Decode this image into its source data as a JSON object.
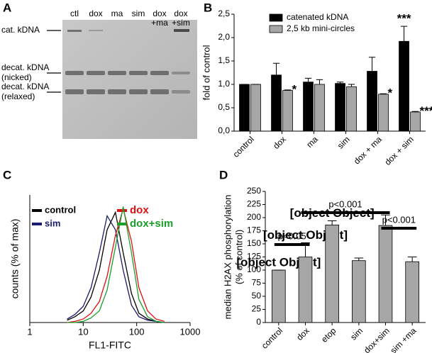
{
  "panels": [
    "A",
    "B",
    "C",
    "D"
  ],
  "gel": {
    "lanes": [
      "ctl",
      "dox",
      "ma",
      "sim",
      [
        "dox",
        "+ma"
      ],
      [
        "dox",
        "+sim"
      ]
    ],
    "bands": [
      [
        "cat. kDNA"
      ],
      [
        "decat. kDNA",
        "(nicked)"
      ],
      [
        "decat. kDNA",
        "(relaxed)"
      ]
    ]
  },
  "chart_data": [
    {
      "type": "bar",
      "ylabel": "fold of control",
      "categories": [
        "control",
        "dox",
        "ma",
        "sim",
        "dox + ma",
        "dox + sim"
      ],
      "series": [
        {
          "name": "catenated kDNA",
          "color": "#000000",
          "values": [
            1.0,
            1.2,
            1.05,
            1.02,
            1.28,
            1.92
          ],
          "errors": [
            0,
            0.25,
            0.08,
            0.03,
            0.3,
            0.32
          ],
          "annotations": [
            null,
            null,
            null,
            null,
            null,
            "***"
          ]
        },
        {
          "name": "2,5 kb mini-circles",
          "color": "#a6a6a6",
          "values": [
            1.0,
            0.87,
            1.0,
            0.95,
            0.79,
            0.41
          ],
          "errors": [
            0,
            0.01,
            0.1,
            0.05,
            0.01,
            0.01
          ],
          "annotations": [
            null,
            "*",
            null,
            null,
            "*",
            "***"
          ]
        }
      ],
      "ylim": [
        0,
        2.5
      ],
      "yticks": [
        {
          "value": 0,
          "label": "0,0"
        },
        {
          "value": 0.5,
          "label": "0,5"
        },
        {
          "value": 1,
          "label": "1,0"
        },
        {
          "value": 1.5,
          "label": "1,5"
        },
        {
          "value": 2,
          "label": "2,0"
        },
        {
          "value": 2.5,
          "label": "2,5"
        }
      ],
      "legend": "upper left"
    },
    {
      "type": "line",
      "xlabel": "FL1-FITC",
      "ylabel": "counts (% of max)",
      "xscale": "log",
      "x": [
        5,
        7,
        10,
        14,
        20,
        28,
        40,
        56,
        80,
        110,
        160,
        230,
        330
      ],
      "series": [
        {
          "name": "control",
          "color": "#000000",
          "values": [
            2,
            5,
            10,
            22,
            45,
            80,
            95,
            60,
            25,
            8,
            3,
            1,
            0
          ]
        },
        {
          "name": "sim",
          "color": "#1a1a6e",
          "values": [
            3,
            7,
            14,
            30,
            60,
            92,
            80,
            45,
            15,
            5,
            2,
            1,
            0
          ]
        },
        {
          "name": "dox",
          "color": "#e01010",
          "values": [
            0,
            1,
            3,
            8,
            18,
            40,
            75,
            98,
            70,
            30,
            10,
            3,
            1
          ]
        },
        {
          "name": "dox+sim",
          "color": "#18a02a",
          "values": [
            0,
            0,
            1,
            4,
            10,
            28,
            65,
            100,
            60,
            20,
            5,
            1,
            0
          ]
        }
      ],
      "xlim": [
        1,
        1000
      ],
      "xticks": [
        1,
        10,
        100,
        1000
      ],
      "ylim": [
        0,
        110
      ]
    },
    {
      "type": "bar",
      "ylabel": [
        "median H2AX phosphorylation",
        "(% of control)"
      ],
      "categories": [
        "control",
        "dox",
        "etop",
        "sim",
        "dox+sim",
        "sim +ma"
      ],
      "values": [
        100,
        125,
        186,
        118,
        185,
        116
      ],
      "errors": [
        0,
        27,
        8,
        5,
        20,
        9
      ],
      "color": "#a6a6a6",
      "ylim": [
        0,
        250
      ],
      "yticks": [
        0,
        25,
        50,
        75,
        100,
        125,
        150,
        175,
        200,
        225,
        250
      ],
      "annotations": [
        {
          "text": "p<0.05",
          "between": [
            "control",
            "dox"
          ]
        },
        {
          "text": "p<0.001",
          "between": [
            "dox",
            "dox+sim"
          ]
        },
        {
          "text": "p<0.001",
          "between": [
            "dox+sim",
            "sim +ma"
          ]
        }
      ]
    }
  ]
}
